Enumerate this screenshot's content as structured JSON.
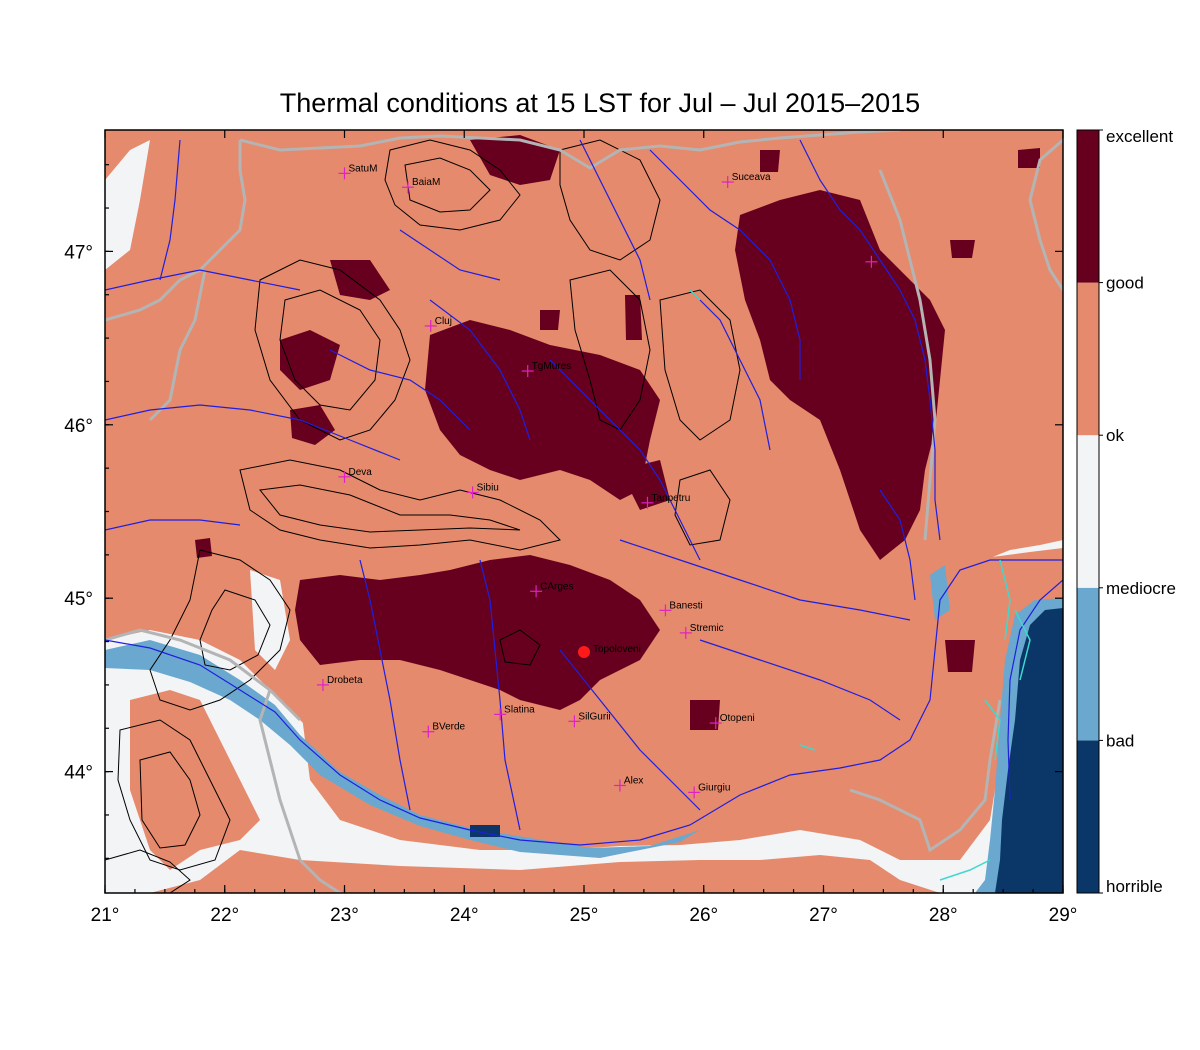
{
  "title": "Thermal conditions at 15 LST for Jul – Jul  2015–2015",
  "colors": {
    "excellent": "#67001f",
    "ok": "#e58a6c",
    "mediocre": "#f2f4f6",
    "bad": "#6aa8cf",
    "horrible": "#0a3767",
    "river": "#1f1fe0",
    "border": "#b4b4b4",
    "lake": "#3fd8d0",
    "station_marker": "#e020c8",
    "highlight_station": "#ff1a1a"
  },
  "map": {
    "lon_range": [
      21,
      29
    ],
    "lat_range": [
      43.3,
      47.7
    ],
    "x_ticks": [
      {
        "value": 21,
        "label": "21°"
      },
      {
        "value": 22,
        "label": "22°"
      },
      {
        "value": 23,
        "label": "23°"
      },
      {
        "value": 24,
        "label": "24°"
      },
      {
        "value": 25,
        "label": "25°"
      },
      {
        "value": 26,
        "label": "26°"
      },
      {
        "value": 27,
        "label": "27°"
      },
      {
        "value": 28,
        "label": "28°"
      },
      {
        "value": 29,
        "label": "29°"
      }
    ],
    "y_ticks": [
      {
        "value": 44,
        "label": "44°"
      },
      {
        "value": 45,
        "label": "45°"
      },
      {
        "value": 46,
        "label": "46°"
      },
      {
        "value": 47,
        "label": "47°"
      }
    ]
  },
  "legend": {
    "labels": [
      "excellent",
      "good",
      "ok",
      "mediocre",
      "bad",
      "horrible"
    ],
    "bins": [
      {
        "class": "horrible",
        "color": "#0a3767"
      },
      {
        "class": "bad",
        "color": "#6aa8cf"
      },
      {
        "class": "mediocre",
        "color": "#f2f4f6"
      },
      {
        "class": "ok",
        "color": "#e58a6c"
      },
      {
        "class": "good",
        "color": "#67001f"
      }
    ]
  },
  "stations": [
    {
      "name": "SatuM",
      "lon": 23.0,
      "lat": 47.45
    },
    {
      "name": "BaiaM",
      "lon": 23.53,
      "lat": 47.37
    },
    {
      "name": "Suceava",
      "lon": 26.2,
      "lat": 47.4
    },
    {
      "name": "",
      "lon": 27.4,
      "lat": 46.94
    },
    {
      "name": "Cluj",
      "lon": 23.72,
      "lat": 46.57
    },
    {
      "name": "TgMures",
      "lon": 24.53,
      "lat": 46.31
    },
    {
      "name": "Deva",
      "lon": 23.0,
      "lat": 45.7
    },
    {
      "name": "Sibiu",
      "lon": 24.07,
      "lat": 45.61
    },
    {
      "name": "Tanpetru",
      "lon": 25.53,
      "lat": 45.55
    },
    {
      "name": "CArges",
      "lon": 24.6,
      "lat": 45.04
    },
    {
      "name": "Banesti",
      "lon": 25.68,
      "lat": 44.93
    },
    {
      "name": "Stremic",
      "lon": 25.85,
      "lat": 44.8
    },
    {
      "name": "Drobeta",
      "lon": 22.82,
      "lat": 44.5
    },
    {
      "name": "Slatina",
      "lon": 24.3,
      "lat": 44.33
    },
    {
      "name": "SilGurii",
      "lon": 24.92,
      "lat": 44.29
    },
    {
      "name": "Otopeni",
      "lon": 26.1,
      "lat": 44.28
    },
    {
      "name": "BVerde",
      "lon": 23.7,
      "lat": 44.23
    },
    {
      "name": "Alex",
      "lon": 25.3,
      "lat": 43.92
    },
    {
      "name": "Giurgiu",
      "lon": 25.92,
      "lat": 43.88
    }
  ],
  "highlight_station": {
    "name": "Topoloveni",
    "lon": 25.0,
    "lat": 44.69
  }
}
